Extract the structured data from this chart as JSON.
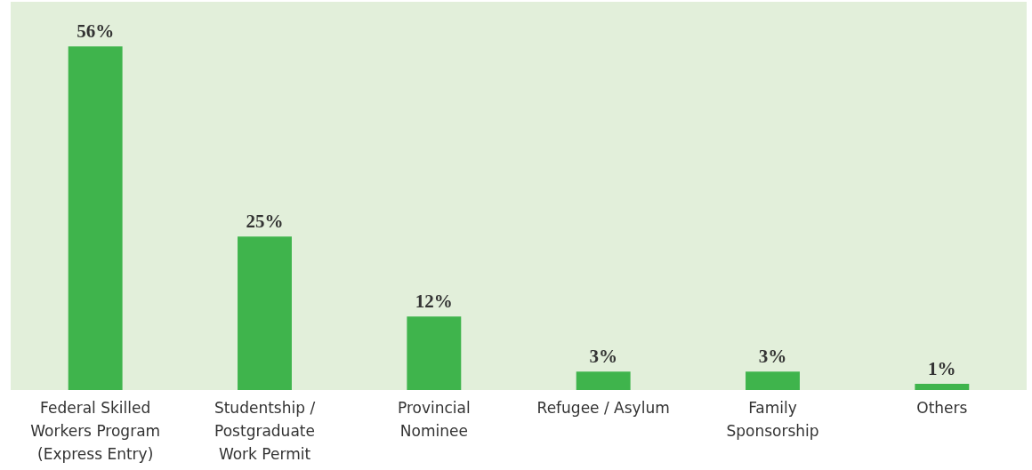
{
  "chart_data": {
    "type": "bar",
    "categories": [
      "Federal Skilled\nWorkers Program\n(Express Entry)",
      "Studentship /\nPostgraduate\nWork Permit",
      "Provincial\nNominee",
      "Refugee / Asylum",
      "Family\nSponsorship",
      "Others"
    ],
    "values": [
      56,
      25,
      12,
      3,
      3,
      1
    ],
    "value_labels": [
      "56%",
      "25%",
      "12%",
      "3%",
      "3%",
      "1%"
    ],
    "color": "#3fb44c"
  }
}
